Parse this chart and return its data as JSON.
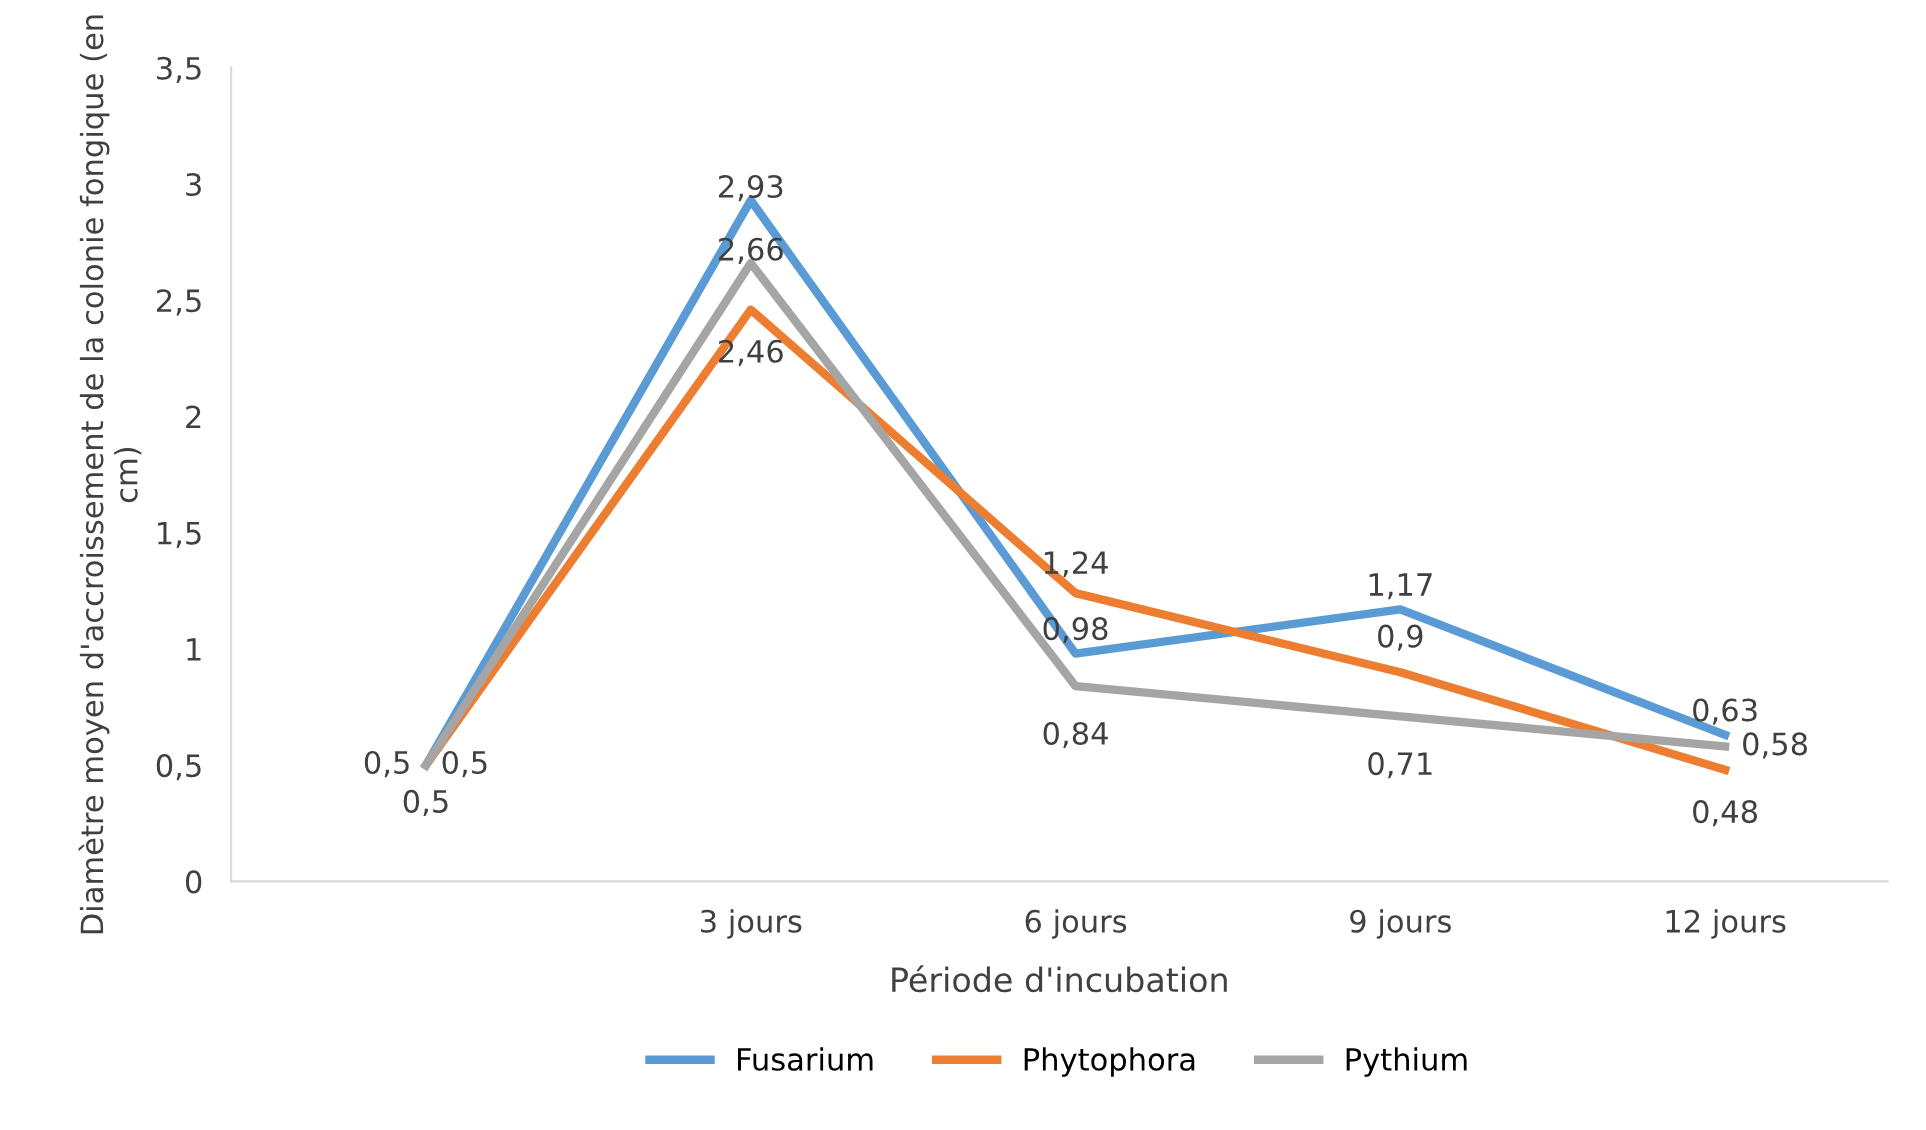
{
  "chart_data": {
    "type": "line",
    "xlabel": "Période d'incubation",
    "ylabel": "Diamètre moyen d'accroissement de la colonie fongique (en cm)",
    "categories": [
      null,
      "3 jours",
      "6 jours",
      "9 jours",
      "12 jours"
    ],
    "series": [
      {
        "name": "Fusarium",
        "color": "#5b9bd5",
        "values": [
          0.5,
          2.93,
          0.98,
          1.17,
          0.63
        ],
        "value_labels": [
          "0,5",
          "2,93",
          "0,98",
          "1,17",
          "0,63"
        ]
      },
      {
        "name": "Phytophora",
        "color": "#ed7d31",
        "values": [
          0.5,
          2.46,
          1.24,
          0.9,
          0.48
        ],
        "value_labels": [
          "0,5",
          "2,46",
          "1,24",
          "0,9",
          "0,48"
        ]
      },
      {
        "name": "Pythium",
        "color": "#a5a5a5",
        "values": [
          0.5,
          2.66,
          0.84,
          0.71,
          0.58
        ],
        "value_labels": [
          "0,5",
          "2,66",
          "0,84",
          "0,71",
          "0,58"
        ]
      }
    ],
    "ylim": [
      0,
      3.5
    ],
    "yticks": [
      0,
      {
        "value": 0.5,
        "label": "0,5"
      },
      1,
      {
        "value": 1.5,
        "label": "1,5"
      },
      2,
      {
        "value": 2.5,
        "label": "2,5"
      },
      3,
      {
        "value": 3.5,
        "label": "3,5"
      }
    ],
    "grid": false,
    "legend": "bottom",
    "marker": "none",
    "line_style": "solid"
  }
}
